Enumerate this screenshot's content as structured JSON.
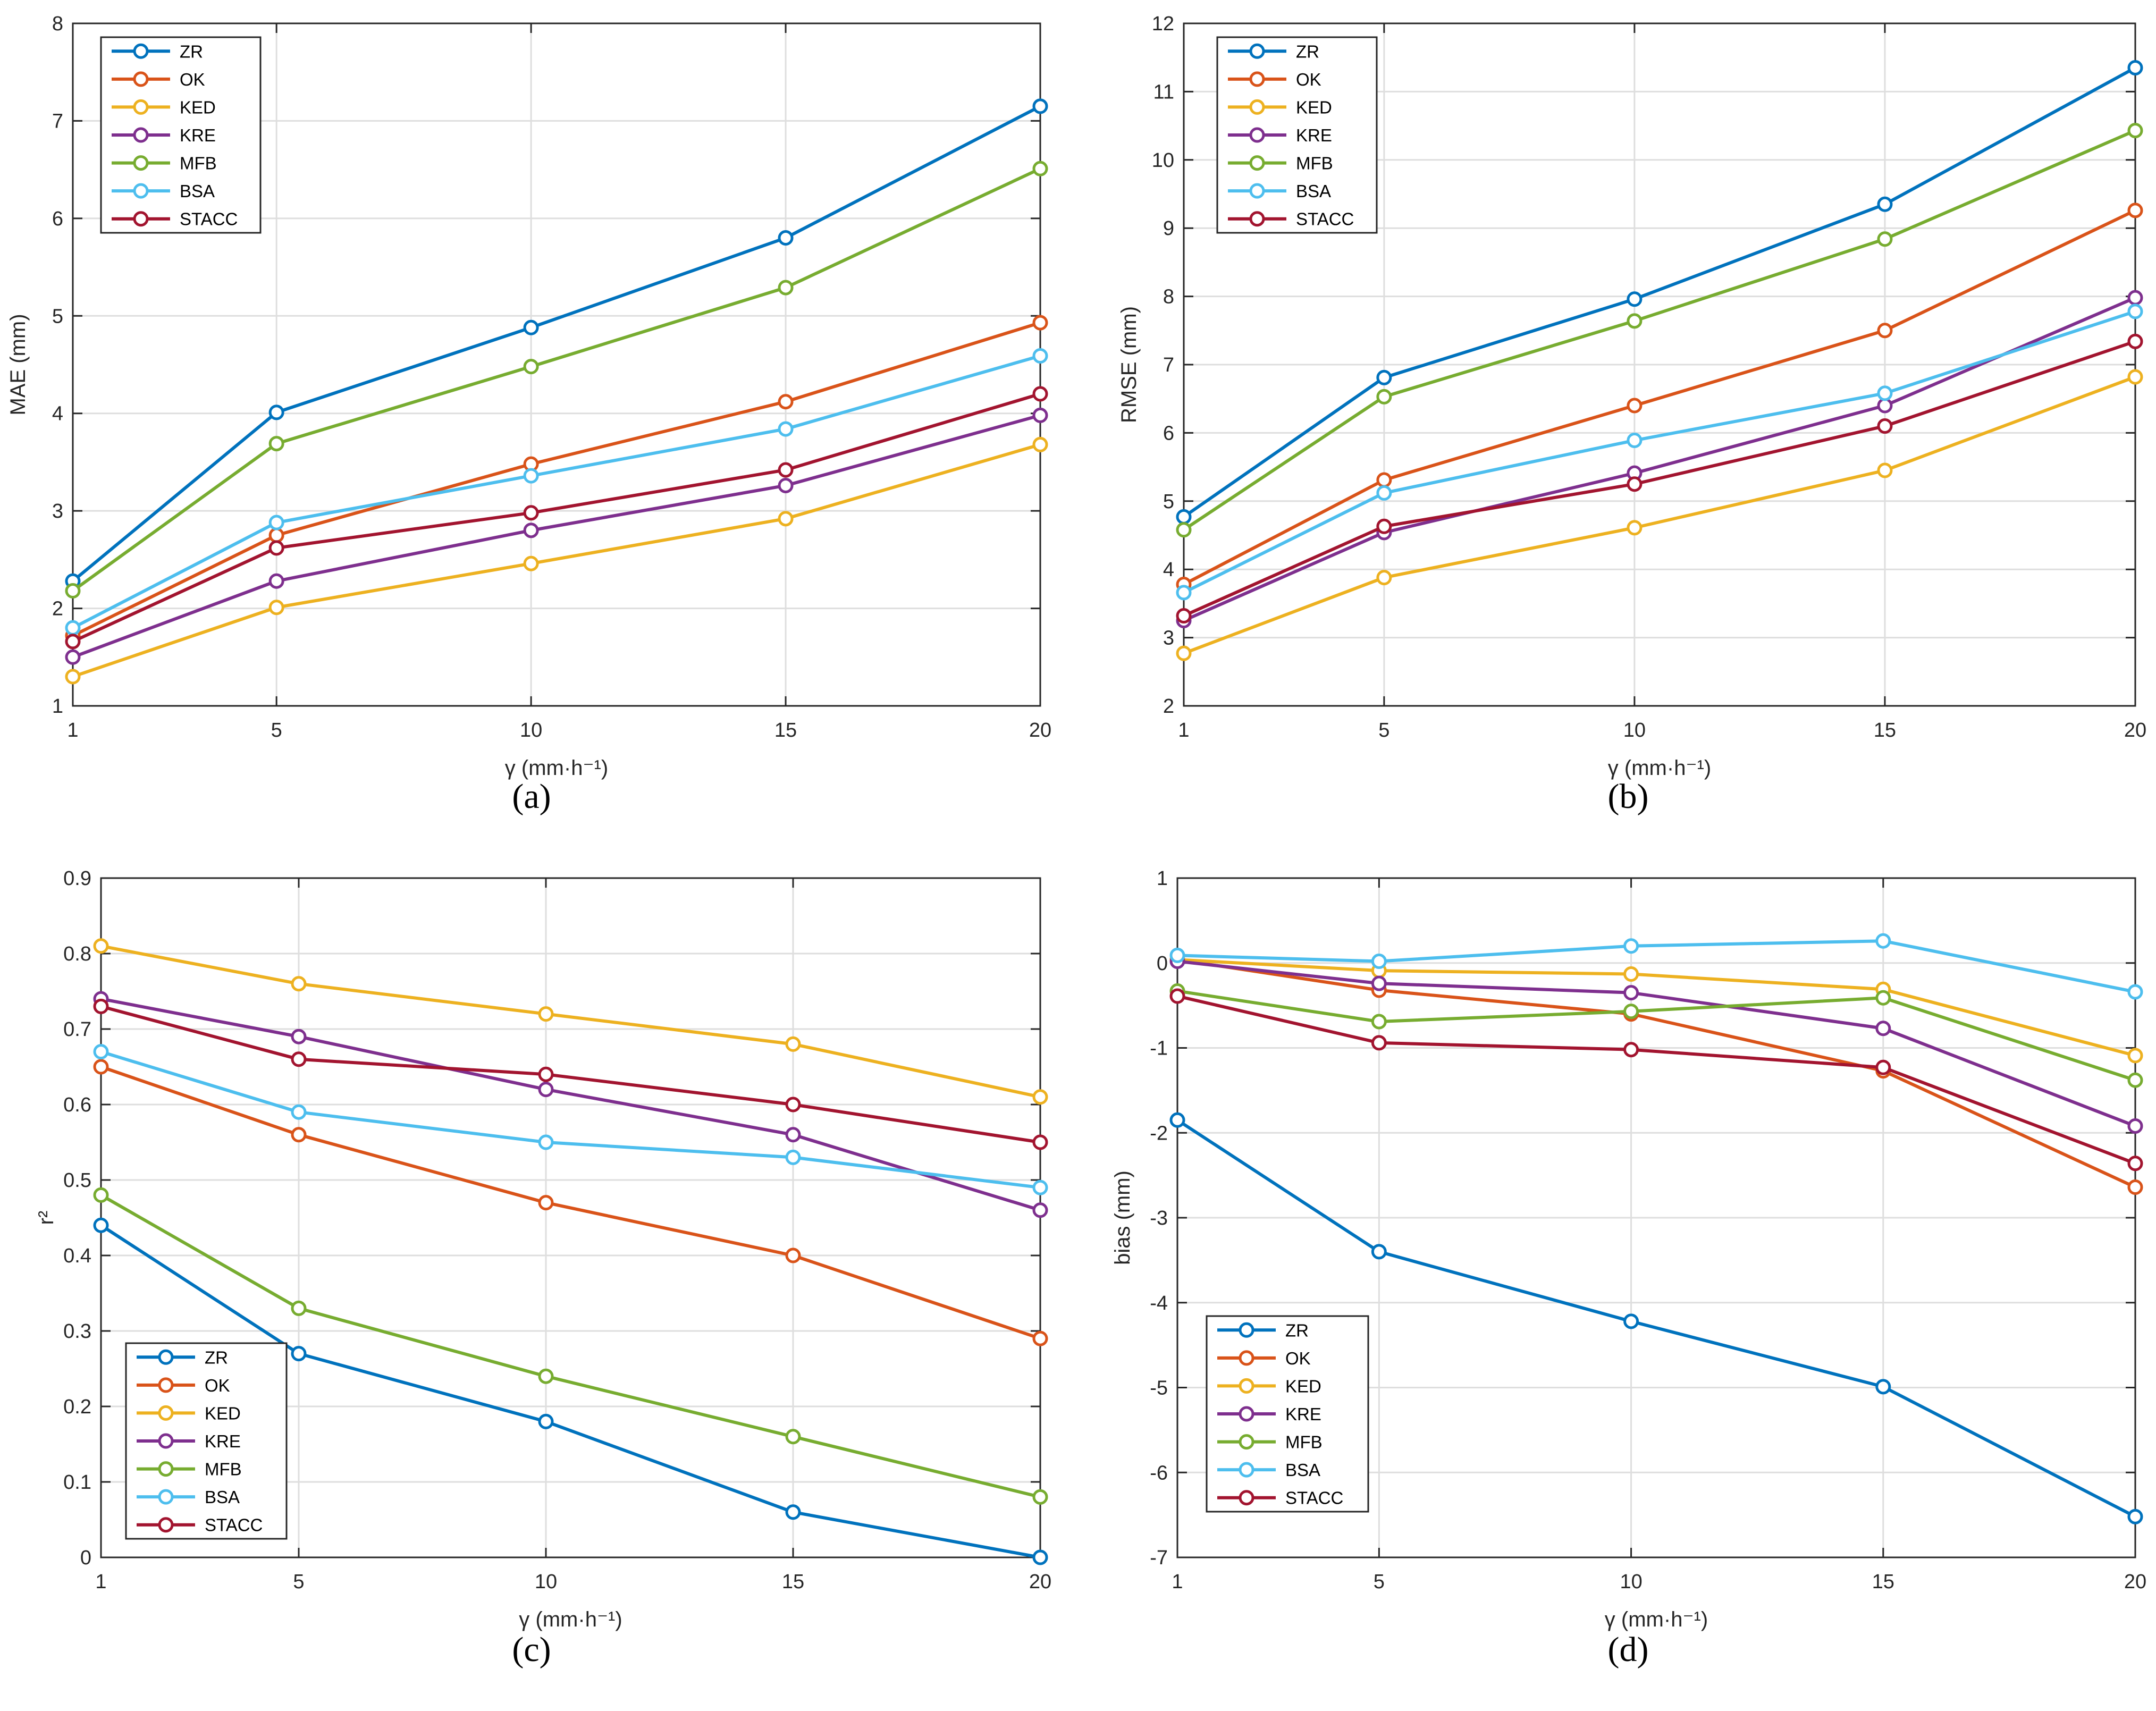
{
  "colors": {
    "ZR": "#0072BD",
    "OK": "#D95319",
    "KED": "#EDB120",
    "KRE": "#7E2F8E",
    "MFB": "#77AC30",
    "BSA": "#4DBEEE",
    "STACC": "#A2142F"
  },
  "chart_data": [
    {
      "id": "a",
      "type": "line",
      "panel_label": "(a)",
      "title": "",
      "xlabel": "γ (mm·h⁻¹)",
      "ylabel": "MAE (mm)",
      "xlim": [
        1,
        20
      ],
      "ylim": [
        1,
        8
      ],
      "xticks": [
        1,
        5,
        10,
        15,
        20
      ],
      "yticks": [
        1,
        2,
        3,
        4,
        5,
        6,
        7,
        8
      ],
      "grid": true,
      "legend_position": "top-left",
      "x": [
        1,
        5,
        10,
        15,
        20
      ],
      "series": [
        {
          "name": "ZR",
          "values": [
            2.28,
            4.01,
            4.88,
            5.8,
            7.15
          ]
        },
        {
          "name": "OK",
          "values": [
            1.72,
            2.75,
            3.48,
            4.12,
            4.93
          ]
        },
        {
          "name": "KED",
          "values": [
            1.3,
            2.01,
            2.46,
            2.92,
            3.68
          ]
        },
        {
          "name": "KRE",
          "values": [
            1.5,
            2.28,
            2.8,
            3.26,
            3.98
          ]
        },
        {
          "name": "MFB",
          "values": [
            2.18,
            3.69,
            4.48,
            5.29,
            6.51
          ]
        },
        {
          "name": "BSA",
          "values": [
            1.8,
            2.88,
            3.36,
            3.84,
            4.59
          ]
        },
        {
          "name": "STACC",
          "values": [
            1.66,
            2.62,
            2.98,
            3.42,
            4.2
          ]
        }
      ]
    },
    {
      "id": "b",
      "type": "line",
      "panel_label": "(b)",
      "title": "",
      "xlabel": "γ (mm·h⁻¹)",
      "ylabel": "RMSE (mm)",
      "xlim": [
        1,
        20
      ],
      "ylim": [
        2,
        12
      ],
      "xticks": [
        1,
        5,
        10,
        15,
        20
      ],
      "yticks": [
        2,
        3,
        4,
        5,
        6,
        7,
        8,
        9,
        10,
        11,
        12
      ],
      "grid": true,
      "legend_position": "top-left",
      "x": [
        1,
        5,
        10,
        15,
        20
      ],
      "series": [
        {
          "name": "ZR",
          "values": [
            4.77,
            6.81,
            7.96,
            9.35,
            11.35
          ]
        },
        {
          "name": "OK",
          "values": [
            3.78,
            5.31,
            6.4,
            7.5,
            9.26
          ]
        },
        {
          "name": "KED",
          "values": [
            2.77,
            3.88,
            4.61,
            5.45,
            6.82
          ]
        },
        {
          "name": "KRE",
          "values": [
            3.25,
            4.54,
            5.41,
            6.4,
            7.98
          ]
        },
        {
          "name": "MFB",
          "values": [
            4.58,
            6.53,
            7.64,
            8.84,
            10.43
          ]
        },
        {
          "name": "BSA",
          "values": [
            3.66,
            5.12,
            5.89,
            6.58,
            7.78
          ]
        },
        {
          "name": "STACC",
          "values": [
            3.32,
            4.63,
            5.25,
            6.1,
            7.34
          ]
        }
      ]
    },
    {
      "id": "c",
      "type": "line",
      "panel_label": "(c)",
      "title": "",
      "xlabel": "γ (mm·h⁻¹)",
      "ylabel": "r²",
      "xlim": [
        1,
        20
      ],
      "ylim": [
        0,
        0.9
      ],
      "xticks": [
        1,
        5,
        10,
        15,
        20
      ],
      "yticks": [
        0,
        0.1,
        0.2,
        0.3,
        0.4,
        0.5,
        0.6,
        0.7,
        0.8,
        0.9
      ],
      "grid": true,
      "legend_position": "bottom-left",
      "x": [
        1,
        5,
        10,
        15,
        20
      ],
      "series": [
        {
          "name": "ZR",
          "values": [
            0.44,
            0.27,
            0.18,
            0.06,
            0.0
          ]
        },
        {
          "name": "OK",
          "values": [
            0.65,
            0.56,
            0.47,
            0.4,
            0.29
          ]
        },
        {
          "name": "KED",
          "values": [
            0.81,
            0.76,
            0.72,
            0.68,
            0.61
          ]
        },
        {
          "name": "KRE",
          "values": [
            0.74,
            0.69,
            0.62,
            0.56,
            0.46
          ]
        },
        {
          "name": "MFB",
          "values": [
            0.48,
            0.33,
            0.24,
            0.16,
            0.08
          ]
        },
        {
          "name": "BSA",
          "values": [
            0.67,
            0.59,
            0.55,
            0.53,
            0.49
          ]
        },
        {
          "name": "STACC",
          "values": [
            0.73,
            0.66,
            0.64,
            0.6,
            0.55
          ]
        }
      ]
    },
    {
      "id": "d",
      "type": "line",
      "panel_label": "(d)",
      "title": "",
      "xlabel": "γ (mm·h⁻¹)",
      "ylabel": "bias (mm)",
      "xlim": [
        1,
        20
      ],
      "ylim": [
        -7,
        1
      ],
      "xticks": [
        1,
        5,
        10,
        15,
        20
      ],
      "yticks": [
        -7,
        -6,
        -5,
        -4,
        -3,
        -2,
        -1,
        0,
        1
      ],
      "grid": true,
      "legend_position": "bottom-left",
      "x": [
        1,
        5,
        10,
        15,
        20
      ],
      "series": [
        {
          "name": "ZR",
          "values": [
            -1.85,
            -3.4,
            -4.22,
            -4.99,
            -6.52
          ]
        },
        {
          "name": "OK",
          "values": [
            0.04,
            -0.32,
            -0.6,
            -1.27,
            -2.64
          ]
        },
        {
          "name": "KED",
          "values": [
            0.04,
            -0.09,
            -0.13,
            -0.31,
            -1.09
          ]
        },
        {
          "name": "KRE",
          "values": [
            0.02,
            -0.24,
            -0.35,
            -0.77,
            -1.92
          ]
        },
        {
          "name": "MFB",
          "values": [
            -0.33,
            -0.69,
            -0.57,
            -0.41,
            -1.38
          ]
        },
        {
          "name": "BSA",
          "values": [
            0.09,
            0.02,
            0.2,
            0.26,
            -0.34
          ]
        },
        {
          "name": "STACC",
          "values": [
            -0.39,
            -0.94,
            -1.02,
            -1.23,
            -2.36
          ]
        }
      ]
    }
  ]
}
